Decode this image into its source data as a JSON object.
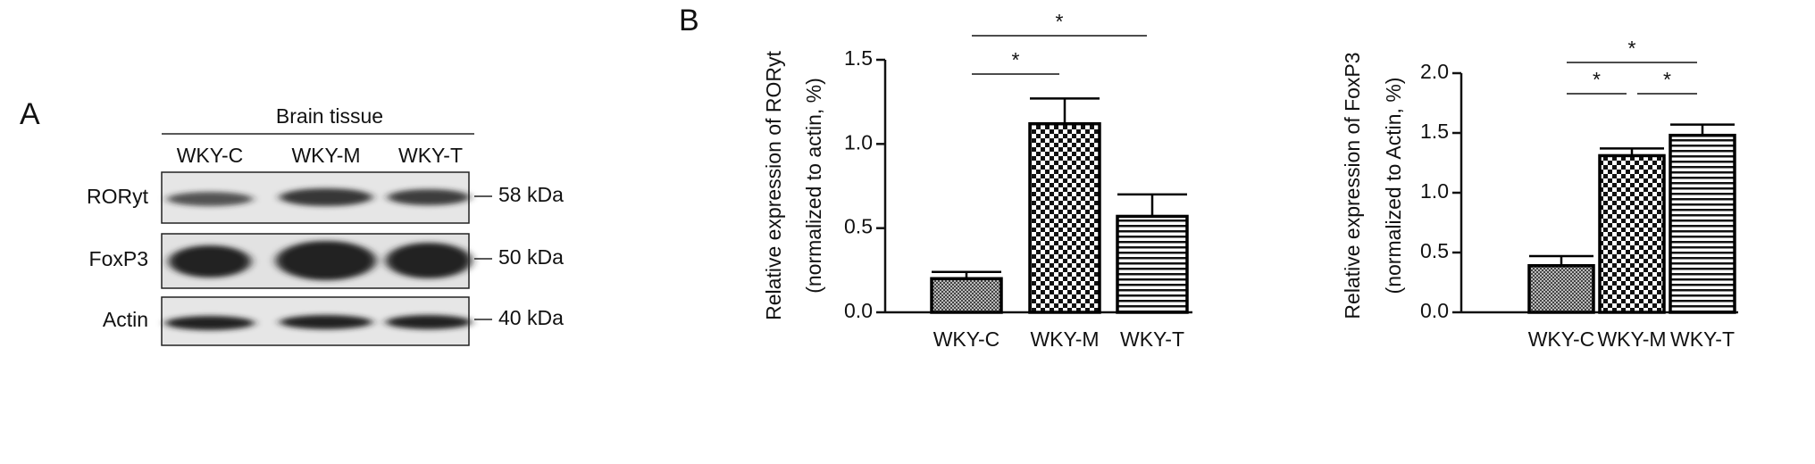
{
  "panel_a": {
    "label": "A",
    "group_label": "Brain tissue",
    "lanes": [
      "WKY-C",
      "WKY-M",
      "WKY-T"
    ],
    "rows": [
      {
        "label": "RORyt",
        "size": "58 kDa"
      },
      {
        "label": "FoxP3",
        "size": "50 kDa"
      },
      {
        "label": "Actin",
        "size": "40 kDa"
      }
    ]
  },
  "panel_b": {
    "label": "B"
  },
  "chart_data": [
    {
      "type": "bar",
      "y_label": [
        "Relative expression of RORyt",
        "(normalized to actin, %)"
      ],
      "categories": [
        "WKY-C",
        "WKY-M",
        "WKY-T"
      ],
      "values": [
        0.2,
        1.12,
        0.57
      ],
      "errors": [
        0.04,
        0.15,
        0.13
      ],
      "patterns": [
        "fine-check",
        "check",
        "hstripe"
      ],
      "color": "#000000",
      "ylim": [
        0,
        1.5
      ],
      "yticks": [
        {
          "value": 0,
          "label": "0.0"
        },
        0.5,
        {
          "value": 1,
          "label": "1.0"
        },
        1.5
      ],
      "significance": [
        {
          "between": [
            "WKY-C",
            "WKY-M"
          ],
          "label": "*"
        },
        {
          "between": [
            "WKY-C",
            "WKY-T"
          ],
          "label": "*"
        }
      ]
    },
    {
      "type": "bar",
      "y_label": [
        "Relative expression of FoxP3",
        "(normalized to Actin, %)"
      ],
      "categories": [
        "WKY-C",
        "WKY-M",
        "WKY-T"
      ],
      "values": [
        0.39,
        1.31,
        1.48
      ],
      "errors": [
        0.08,
        0.06,
        0.09
      ],
      "patterns": [
        "fine-check",
        "check",
        "hstripe"
      ],
      "color": "#000000",
      "ylim": [
        0,
        2
      ],
      "yticks": [
        {
          "value": 0,
          "label": "0.0"
        },
        0.5,
        {
          "value": 1,
          "label": "1.0"
        },
        1.5,
        {
          "value": 2,
          "label": "2.0"
        }
      ],
      "significance": [
        {
          "between": [
            "WKY-C",
            "WKY-T"
          ],
          "label": "*"
        },
        {
          "between": [
            "WKY-C",
            "WKY-M"
          ],
          "label": "*"
        },
        {
          "between": [
            "WKY-M",
            "WKY-T"
          ],
          "label": "*"
        }
      ]
    }
  ]
}
